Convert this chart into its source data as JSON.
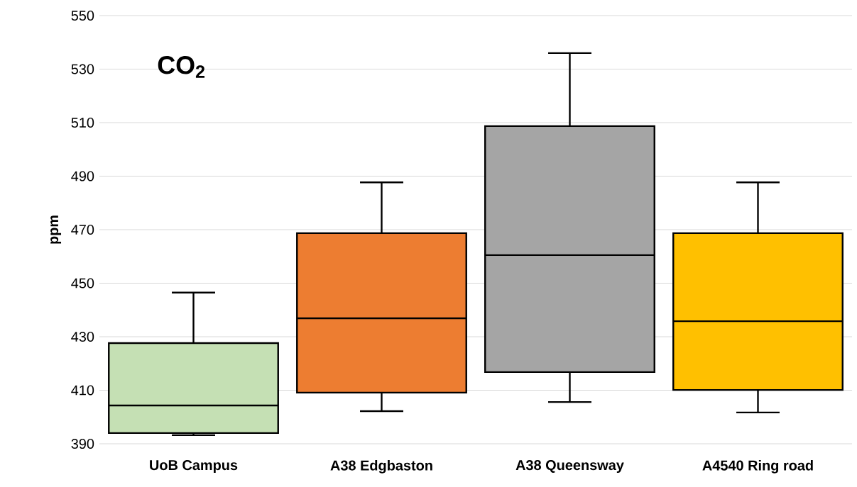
{
  "chart_data": {
    "type": "box",
    "title": "CO$_{2}$",
    "ylabel": "ppm",
    "categories": [
      "UoB Campus",
      "A38 Edgbaston",
      "A38 Queensway",
      "A4540 Ring road"
    ],
    "boxes": [
      {
        "low": 393.2,
        "q1": 394.0,
        "median": 404.3,
        "q3": 427.6,
        "high": 446.5
      },
      {
        "low": 402.2,
        "q1": 409.1,
        "median": 436.9,
        "q3": 468.7,
        "high": 487.7
      },
      {
        "low": 405.6,
        "q1": 416.8,
        "median": 460.5,
        "q3": 508.7,
        "high": 536.0
      },
      {
        "low": 401.7,
        "q1": 410.1,
        "median": 435.8,
        "q3": 468.7,
        "high": 487.7
      }
    ],
    "colors": [
      "#c5e0b4",
      "#ed7d31",
      "#a5a5a5",
      "#ffc000"
    ],
    "ylim": [
      390,
      550
    ],
    "yticks": [
      390,
      410,
      430,
      450,
      470,
      490,
      510,
      530,
      550
    ],
    "grid": "y"
  }
}
